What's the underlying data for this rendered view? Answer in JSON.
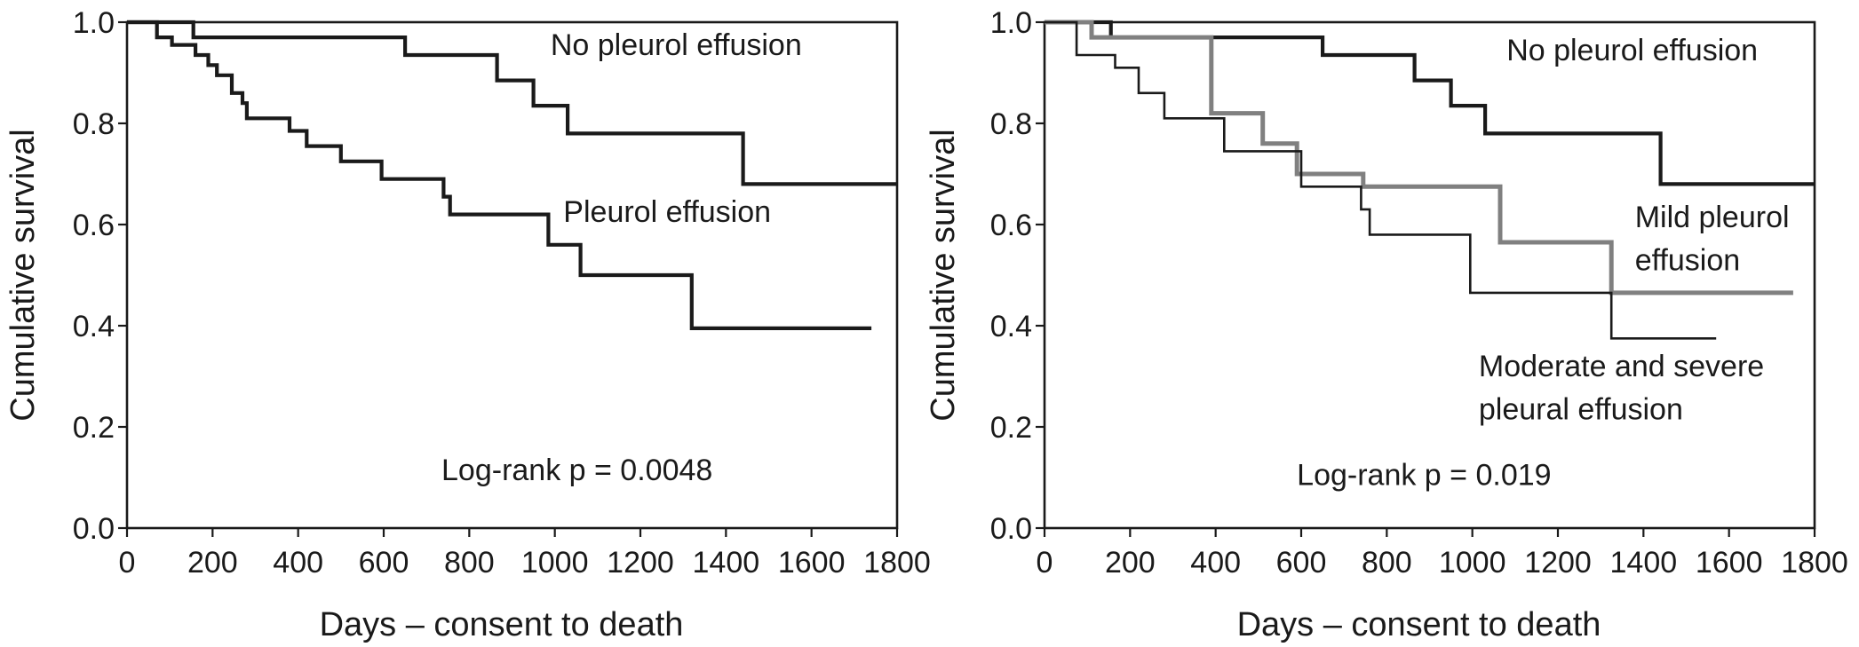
{
  "chart_data": [
    {
      "type": "line",
      "xlabel": "Days – consent to death",
      "ylabel": "Cumulative survival",
      "xlim": [
        0,
        1800
      ],
      "ylim": [
        0.0,
        1.0
      ],
      "xticks": [
        0,
        200,
        400,
        600,
        800,
        1000,
        1200,
        1400,
        1600,
        1800
      ],
      "yticks": [
        "0.0",
        "0.2",
        "0.4",
        "0.6",
        "0.8",
        "1.0"
      ],
      "grid": false,
      "series": [
        {
          "name": "No pleurol effusion",
          "color": "#1a1a1a",
          "points": [
            [
              0,
              1.0
            ],
            [
              155,
              1.0
            ],
            [
              155,
              0.97
            ],
            [
              650,
              0.97
            ],
            [
              650,
              0.935
            ],
            [
              865,
              0.935
            ],
            [
              865,
              0.885
            ],
            [
              950,
              0.885
            ],
            [
              950,
              0.835
            ],
            [
              1030,
              0.835
            ],
            [
              1030,
              0.78
            ],
            [
              1440,
              0.78
            ],
            [
              1440,
              0.68
            ],
            [
              1800,
              0.68
            ]
          ]
        },
        {
          "name": "Pleurol effusion",
          "color": "#1a1a1a",
          "points": [
            [
              0,
              1.0
            ],
            [
              70,
              1.0
            ],
            [
              70,
              0.97
            ],
            [
              105,
              0.97
            ],
            [
              105,
              0.955
            ],
            [
              160,
              0.955
            ],
            [
              160,
              0.935
            ],
            [
              190,
              0.935
            ],
            [
              190,
              0.915
            ],
            [
              210,
              0.915
            ],
            [
              210,
              0.895
            ],
            [
              245,
              0.895
            ],
            [
              245,
              0.86
            ],
            [
              270,
              0.86
            ],
            [
              270,
              0.84
            ],
            [
              280,
              0.84
            ],
            [
              280,
              0.81
            ],
            [
              380,
              0.81
            ],
            [
              380,
              0.785
            ],
            [
              420,
              0.785
            ],
            [
              420,
              0.755
            ],
            [
              500,
              0.755
            ],
            [
              500,
              0.725
            ],
            [
              595,
              0.725
            ],
            [
              595,
              0.69
            ],
            [
              740,
              0.69
            ],
            [
              740,
              0.655
            ],
            [
              755,
              0.655
            ],
            [
              755,
              0.62
            ],
            [
              985,
              0.62
            ],
            [
              985,
              0.56
            ],
            [
              1060,
              0.56
            ],
            [
              1060,
              0.5
            ],
            [
              1320,
              0.5
            ],
            [
              1320,
              0.395
            ],
            [
              1740,
              0.395
            ]
          ]
        }
      ],
      "annotations": [
        {
          "text": "No pleurol effusion",
          "x": 990,
          "y": 0.935
        },
        {
          "text": "Pleurol effusion",
          "x": 1020,
          "y": 0.605
        },
        {
          "text": "Log-rank p = 0.0048",
          "x": 735,
          "y": 0.095
        }
      ]
    },
    {
      "type": "line",
      "xlabel": "Days – consent to death",
      "ylabel": "Cumulative survival",
      "xlim": [
        0,
        1800
      ],
      "ylim": [
        0.0,
        1.0
      ],
      "xticks": [
        0,
        200,
        400,
        600,
        800,
        1000,
        1200,
        1400,
        1600,
        1800
      ],
      "yticks": [
        "0.0",
        "0.2",
        "0.4",
        "0.6",
        "0.8",
        "1.0"
      ],
      "grid": false,
      "series": [
        {
          "name": "No pleurol effusion",
          "color": "#1a1a1a",
          "points": [
            [
              0,
              1.0
            ],
            [
              155,
              1.0
            ],
            [
              155,
              0.97
            ],
            [
              650,
              0.97
            ],
            [
              650,
              0.935
            ],
            [
              865,
              0.935
            ],
            [
              865,
              0.885
            ],
            [
              950,
              0.885
            ],
            [
              950,
              0.835
            ],
            [
              1030,
              0.835
            ],
            [
              1030,
              0.78
            ],
            [
              1440,
              0.78
            ],
            [
              1440,
              0.68
            ],
            [
              1800,
              0.68
            ]
          ]
        },
        {
          "name": "Mild pleurol effusion",
          "color": "#808080",
          "points": [
            [
              0,
              1.0
            ],
            [
              110,
              1.0
            ],
            [
              110,
              0.97
            ],
            [
              390,
              0.97
            ],
            [
              390,
              0.82
            ],
            [
              510,
              0.82
            ],
            [
              510,
              0.76
            ],
            [
              590,
              0.76
            ],
            [
              590,
              0.7
            ],
            [
              745,
              0.7
            ],
            [
              745,
              0.675
            ],
            [
              1065,
              0.675
            ],
            [
              1065,
              0.565
            ],
            [
              1325,
              0.565
            ],
            [
              1325,
              0.465
            ],
            [
              1750,
              0.465
            ]
          ]
        },
        {
          "name": "Moderate and severe pleural effusion",
          "color": "#1a1a1a",
          "points": [
            [
              0,
              1.0
            ],
            [
              75,
              1.0
            ],
            [
              75,
              0.935
            ],
            [
              165,
              0.935
            ],
            [
              165,
              0.91
            ],
            [
              220,
              0.91
            ],
            [
              220,
              0.86
            ],
            [
              280,
              0.86
            ],
            [
              280,
              0.81
            ],
            [
              420,
              0.81
            ],
            [
              420,
              0.745
            ],
            [
              600,
              0.745
            ],
            [
              600,
              0.675
            ],
            [
              740,
              0.675
            ],
            [
              740,
              0.63
            ],
            [
              760,
              0.63
            ],
            [
              760,
              0.58
            ],
            [
              995,
              0.58
            ],
            [
              995,
              0.465
            ],
            [
              1325,
              0.465
            ],
            [
              1325,
              0.375
            ],
            [
              1570,
              0.375
            ]
          ]
        }
      ],
      "annotations": [
        {
          "text": "No pleurol effusion",
          "x": 1080,
          "y": 0.925
        },
        {
          "text": "Mild pleurol",
          "x": 1380,
          "y": 0.595
        },
        {
          "text": "effusion",
          "x": 1380,
          "y": 0.51
        },
        {
          "text": "Moderate and severe",
          "x": 1015,
          "y": 0.3
        },
        {
          "text": "pleural effusion",
          "x": 1015,
          "y": 0.215
        },
        {
          "text": "Log-rank p = 0.019",
          "x": 590,
          "y": 0.085
        }
      ]
    }
  ]
}
